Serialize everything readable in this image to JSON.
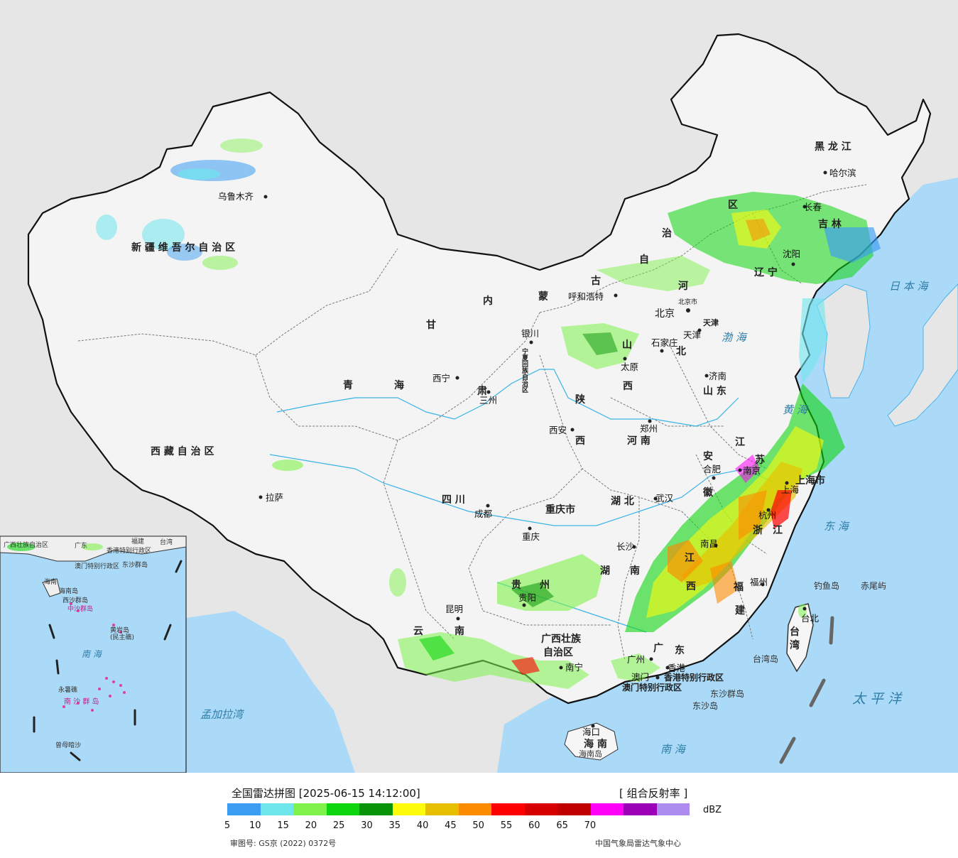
{
  "map": {
    "provinces": [
      {
        "id": "xinjiang",
        "text": "新 疆 维 吾 尔 自 治 区"
      },
      {
        "id": "xizang",
        "text": "西 藏 自 治 区"
      },
      {
        "id": "qinghai-1",
        "text": "青"
      },
      {
        "id": "qinghai-2",
        "text": "海"
      },
      {
        "id": "gansu-1",
        "text": "甘"
      },
      {
        "id": "gansu-2",
        "text": "肃"
      },
      {
        "id": "neimenggu-1",
        "text": "内"
      },
      {
        "id": "neimenggu-2",
        "text": "蒙"
      },
      {
        "id": "neimenggu-3",
        "text": "古"
      },
      {
        "id": "neimenggu-4",
        "text": "自"
      },
      {
        "id": "neimenggu-5",
        "text": "治"
      },
      {
        "id": "neimenggu-6",
        "text": "区"
      },
      {
        "id": "heilongjiang",
        "text": "黑 龙 江"
      },
      {
        "id": "jilin",
        "text": "吉 林"
      },
      {
        "id": "liaoning",
        "text": "辽 宁"
      },
      {
        "id": "hebei-1",
        "text": "河"
      },
      {
        "id": "hebei-2",
        "text": "北"
      },
      {
        "id": "tianjin",
        "text": "天津"
      },
      {
        "id": "shanxi-1",
        "text": "山"
      },
      {
        "id": "shanxi-2",
        "text": "西"
      },
      {
        "id": "shaanxi-1",
        "text": "陕"
      },
      {
        "id": "shaanxi-2",
        "text": "西"
      },
      {
        "id": "ningxia",
        "text": "宁夏回族自治区"
      },
      {
        "id": "shandong",
        "text": "山 东"
      },
      {
        "id": "henan",
        "text": "河 南"
      },
      {
        "id": "jiangsu-1",
        "text": "江"
      },
      {
        "id": "jiangsu-2",
        "text": "苏"
      },
      {
        "id": "anhui-1",
        "text": "安"
      },
      {
        "id": "anhui-2",
        "text": "徽"
      },
      {
        "id": "shanghai",
        "text": "上海市"
      },
      {
        "id": "zhejiang-1",
        "text": "浙"
      },
      {
        "id": "zhejiang-2",
        "text": "江"
      },
      {
        "id": "hubei",
        "text": "湖 北"
      },
      {
        "id": "hunan-1",
        "text": "湖"
      },
      {
        "id": "hunan-2",
        "text": "南"
      },
      {
        "id": "jiangxi-1",
        "text": "江"
      },
      {
        "id": "jiangxi-2",
        "text": "西"
      },
      {
        "id": "fujian-1",
        "text": "福"
      },
      {
        "id": "fujian-2",
        "text": "建"
      },
      {
        "id": "sichuan",
        "text": "四 川"
      },
      {
        "id": "chongqing",
        "text": "重庆市"
      },
      {
        "id": "guizhou-1",
        "text": "贵"
      },
      {
        "id": "guizhou-2",
        "text": "州"
      },
      {
        "id": "yunnan-1",
        "text": "云"
      },
      {
        "id": "yunnan-2",
        "text": "南"
      },
      {
        "id": "guangxi-1",
        "text": "广西壮族"
      },
      {
        "id": "guangxi-2",
        "text": "自治区"
      },
      {
        "id": "guangdong-1",
        "text": "广"
      },
      {
        "id": "guangdong-2",
        "text": "东"
      },
      {
        "id": "hainan",
        "text": "海 南"
      },
      {
        "id": "taiwan-1",
        "text": "台"
      },
      {
        "id": "taiwan-2",
        "text": "湾"
      },
      {
        "id": "hk",
        "text": "香港特别行政区"
      },
      {
        "id": "macau",
        "text": "澳门特别行政区"
      }
    ],
    "cities": [
      {
        "id": "urumqi",
        "text": "乌鲁木齐"
      },
      {
        "id": "lhasa",
        "text": "拉萨"
      },
      {
        "id": "xining",
        "text": "西宁"
      },
      {
        "id": "lanzhou",
        "text": "三州"
      },
      {
        "id": "yinchuan",
        "text": "银川"
      },
      {
        "id": "hohhot",
        "text": "呼和浩特"
      },
      {
        "id": "beijing",
        "text": "北京"
      },
      {
        "id": "beijing-city",
        "text": "北京市"
      },
      {
        "id": "tianjin-city",
        "text": "天津"
      },
      {
        "id": "shijiazhuang",
        "text": "石家庄"
      },
      {
        "id": "taiyuan",
        "text": "太原"
      },
      {
        "id": "jinan",
        "text": "济南"
      },
      {
        "id": "zhengzhou",
        "text": "郑州"
      },
      {
        "id": "xian",
        "text": "西安"
      },
      {
        "id": "hefei",
        "text": "合肥"
      },
      {
        "id": "nanjing",
        "text": "南京"
      },
      {
        "id": "shanghai-city",
        "text": "上海"
      },
      {
        "id": "hangzhou",
        "text": "杭州"
      },
      {
        "id": "wuhan",
        "text": "武汉"
      },
      {
        "id": "changsha",
        "text": "长沙"
      },
      {
        "id": "nanchang",
        "text": "南昌"
      },
      {
        "id": "fuzhou",
        "text": "福州"
      },
      {
        "id": "chengdu",
        "text": "成都"
      },
      {
        "id": "chongqing-city",
        "text": "重庆"
      },
      {
        "id": "guiyang",
        "text": "贵阳"
      },
      {
        "id": "kunming",
        "text": "昆明"
      },
      {
        "id": "nanning",
        "text": "南宁"
      },
      {
        "id": "guangzhou",
        "text": "广州"
      },
      {
        "id": "hongkong",
        "text": "香港"
      },
      {
        "id": "macau-city",
        "text": "澳门"
      },
      {
        "id": "haikou",
        "text": "海口"
      },
      {
        "id": "taipei",
        "text": "台北"
      },
      {
        "id": "harbin",
        "text": "哈尔滨"
      },
      {
        "id": "changchun",
        "text": "长春"
      },
      {
        "id": "shenyang",
        "text": "沈阳"
      }
    ],
    "seas": [
      {
        "id": "bohai",
        "text": "渤 海"
      },
      {
        "id": "yellow-sea",
        "text": "黄 海"
      },
      {
        "id": "sea-of-japan",
        "text": "日 本 海"
      },
      {
        "id": "east-china-sea",
        "text": "东 海"
      },
      {
        "id": "pacific",
        "text": "太 平 洋"
      },
      {
        "id": "south-china-sea",
        "text": "南 海"
      },
      {
        "id": "bay-of-bengal",
        "text": "孟加拉湾"
      }
    ],
    "islands": [
      {
        "id": "diaoyu",
        "text": "钓鱼岛"
      },
      {
        "id": "chiwei",
        "text": "赤尾屿"
      },
      {
        "id": "taiwan-island",
        "text": "台湾岛"
      },
      {
        "id": "dongsha-qundao",
        "text": "东沙群岛"
      },
      {
        "id": "dongsha-dao",
        "text": "东沙岛"
      },
      {
        "id": "hainan-island",
        "text": "海南岛"
      }
    ],
    "inset": {
      "labels": [
        {
          "id": "i-guangxi",
          "text": "广西壮族自治区"
        },
        {
          "id": "i-guangdong",
          "text": "广东"
        },
        {
          "id": "i-fujian",
          "text": "福建"
        },
        {
          "id": "i-taiwan",
          "text": "台湾"
        },
        {
          "id": "i-hk",
          "text": "香港特别行政区"
        },
        {
          "id": "i-macau",
          "text": "澳门特别行政区"
        },
        {
          "id": "i-dongsha",
          "text": "东沙群岛"
        },
        {
          "id": "i-hainan",
          "text": "海南"
        },
        {
          "id": "i-hainan-dao",
          "text": "海南岛"
        },
        {
          "id": "i-xisha",
          "text": "西沙群岛"
        },
        {
          "id": "i-zhongsha",
          "text": "中沙群岛"
        },
        {
          "id": "i-huangyan",
          "text": "黄岩岛"
        },
        {
          "id": "i-minzhujiao",
          "text": "(民主礁)"
        },
        {
          "id": "i-nanhai",
          "text": "南 海"
        },
        {
          "id": "i-yongshu",
          "text": "永暑礁"
        },
        {
          "id": "i-nansha",
          "text": "南 沙 群 岛"
        },
        {
          "id": "i-zengmu",
          "text": "曾母暗沙"
        }
      ]
    }
  },
  "legend": {
    "title": "全国雷达拼图 [2025-06-15 14:12:00]",
    "product": "[ 组合反射率 ]",
    "unit": "dBZ",
    "colors": [
      "#3b9df2",
      "#6fe6ec",
      "#7ef24a",
      "#0dd60f",
      "#079407",
      "#fefc0a",
      "#e6c000",
      "#fb8b00",
      "#fe0000",
      "#d60000",
      "#c00000",
      "#fe00f6",
      "#9b00b6",
      "#ad8cf0"
    ],
    "ticks": [
      "5",
      "10",
      "15",
      "20",
      "25",
      "30",
      "35",
      "40",
      "45",
      "50",
      "55",
      "60",
      "65",
      "70"
    ],
    "map_number": "审图号: GS京 (2022) 0372号",
    "credit": "中国气象局雷达气象中心"
  }
}
